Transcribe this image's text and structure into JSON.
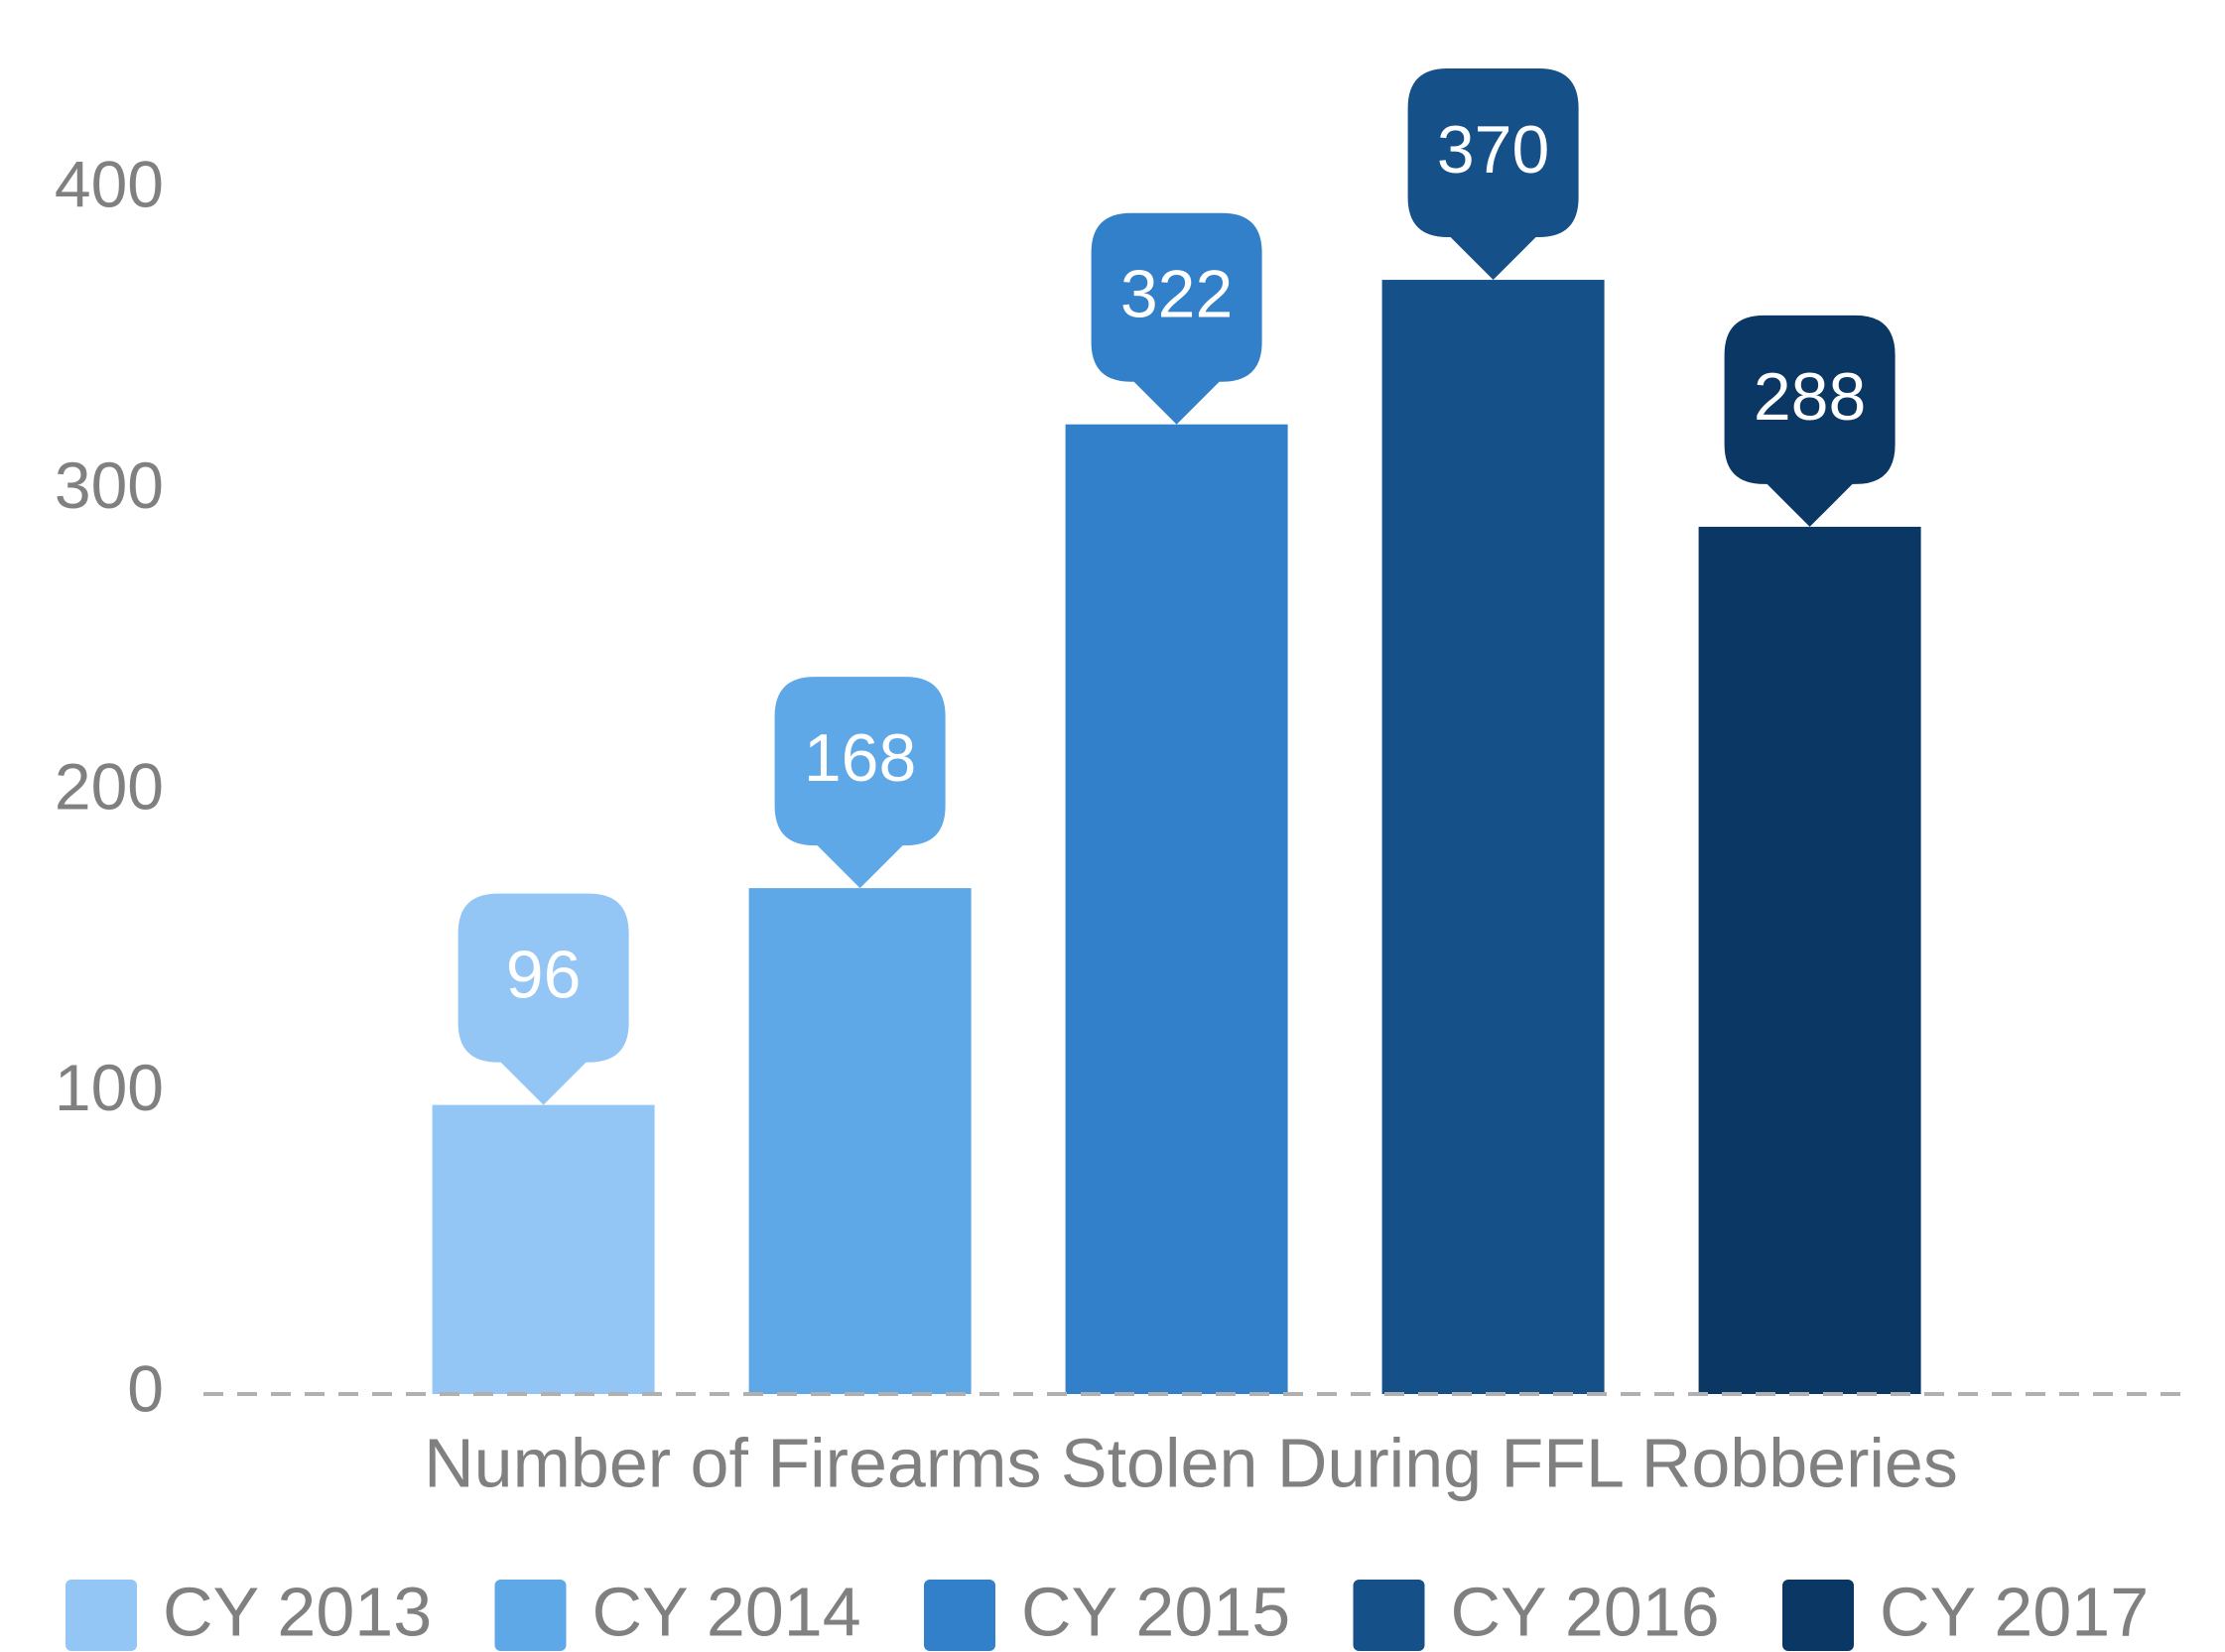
{
  "chart_data": {
    "type": "bar",
    "categories": [
      "Number of Firearms Stolen During FFL Robberies"
    ],
    "series": [
      {
        "name": "CY 2013",
        "color": "#93c5f5",
        "values": [
          96
        ]
      },
      {
        "name": "CY 2014",
        "color": "#5fa8e8",
        "values": [
          168
        ]
      },
      {
        "name": "CY 2015",
        "color": "#3180c9",
        "values": [
          322
        ]
      },
      {
        "name": "CY 2016",
        "color": "#155088",
        "values": [
          370
        ]
      },
      {
        "name": "CY 2017",
        "color": "#0a3763",
        "values": [
          288
        ]
      }
    ],
    "ylim": [
      0,
      440
    ],
    "yticks": [
      0,
      100,
      200,
      300,
      400
    ],
    "grid": false,
    "legend": "bottom"
  }
}
